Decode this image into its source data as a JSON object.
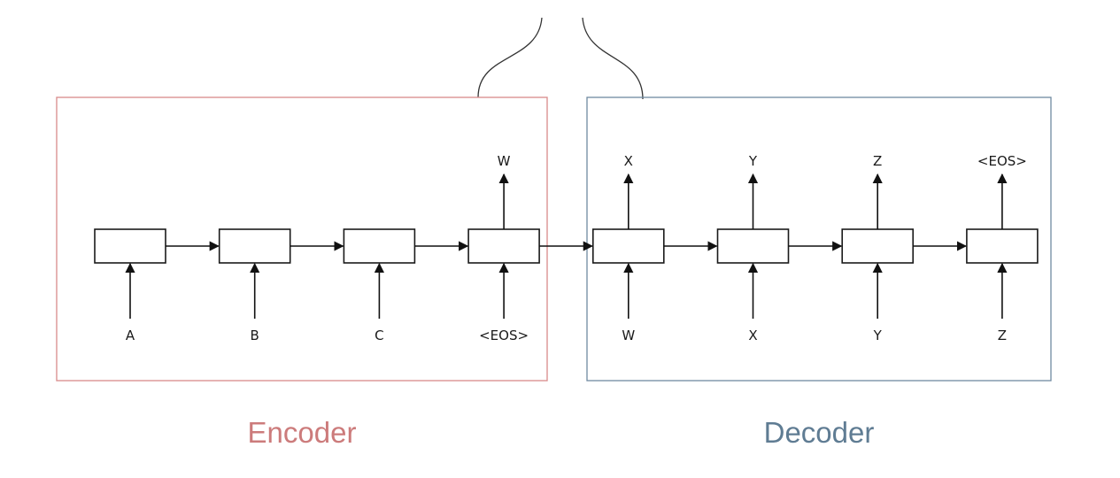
{
  "sections": {
    "encoder": {
      "label": "Encoder",
      "color": "#cc7b7b",
      "frame_color": "#d88a8a"
    },
    "decoder": {
      "label": "Decoder",
      "color": "#5f7c93",
      "frame_color": "#6f8aa0"
    }
  },
  "encoder_cells": [
    {
      "input": "A",
      "output": ""
    },
    {
      "input": "B",
      "output": ""
    },
    {
      "input": "C",
      "output": ""
    },
    {
      "input": "<EOS>",
      "output": "W"
    }
  ],
  "decoder_cells": [
    {
      "input": "W",
      "output": "X"
    },
    {
      "input": "Y",
      "output": "Z"
    }
  ],
  "decoder_cells_full": [
    {
      "input": "W",
      "output": "X"
    },
    {
      "input": "X",
      "output": "Y"
    },
    {
      "input": "Y",
      "output": "Z"
    },
    {
      "input": "Z",
      "output": "<EOS>"
    }
  ],
  "colors": {
    "box_stroke": "#1a1a1a",
    "arrow": "#111111",
    "brace": "#333333"
  }
}
